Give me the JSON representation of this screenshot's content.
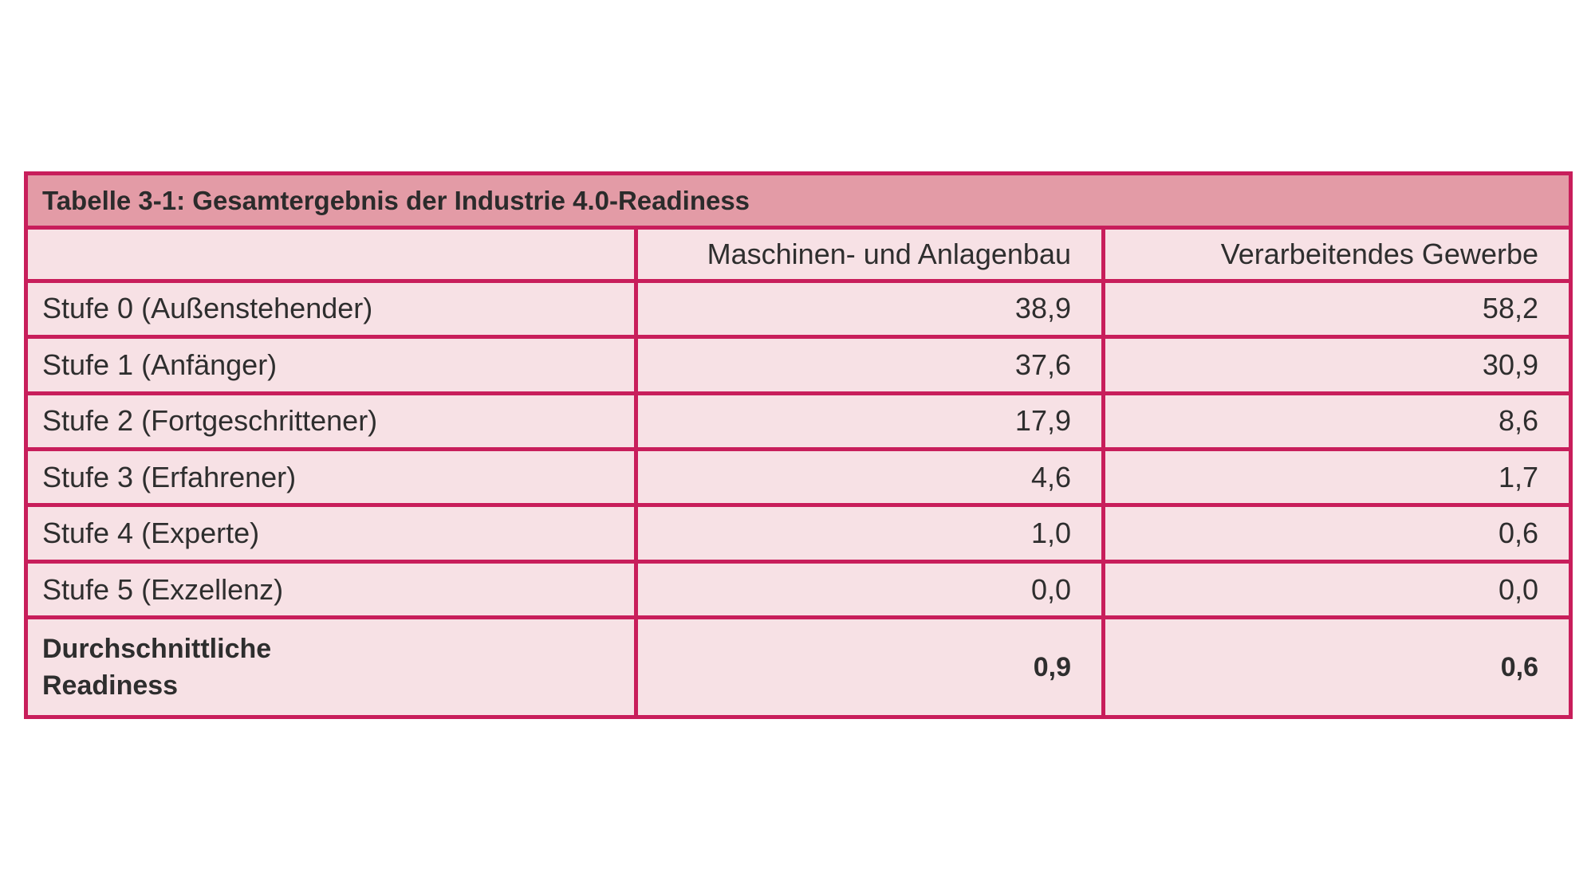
{
  "table": {
    "title": "Tabelle 3-1: Gesamtergebnis der Industrie 4.0-Readiness",
    "header": [
      "",
      "Maschinen- und Anlagenbau",
      "Verarbeitendes Gewerbe"
    ],
    "rows": [
      {
        "label": "Stufe 0 (Außenstehender)",
        "a": "38,9",
        "b": "58,2"
      },
      {
        "label": "Stufe 1 (Anfänger)",
        "a": "37,6",
        "b": "30,9"
      },
      {
        "label": "Stufe 2 (Fortgeschrittener)",
        "a": "17,9",
        "b": "8,6"
      },
      {
        "label": "Stufe 3 (Erfahrener)",
        "a": "4,6",
        "b": "1,7"
      },
      {
        "label": "Stufe 4 (Experte)",
        "a": "1,0",
        "b": "0,6"
      },
      {
        "label": "Stufe 5 (Exzellenz)",
        "a": "0,0",
        "b": "0,0"
      }
    ],
    "total": {
      "label_line1": "Durchschnittliche",
      "label_line2": "Readiness",
      "a": "0,9",
      "b": "0,6"
    }
  },
  "colors": {
    "border": "#c81e5b",
    "title_background": "#e39ba6",
    "cell_background": "#f7e1e5"
  }
}
